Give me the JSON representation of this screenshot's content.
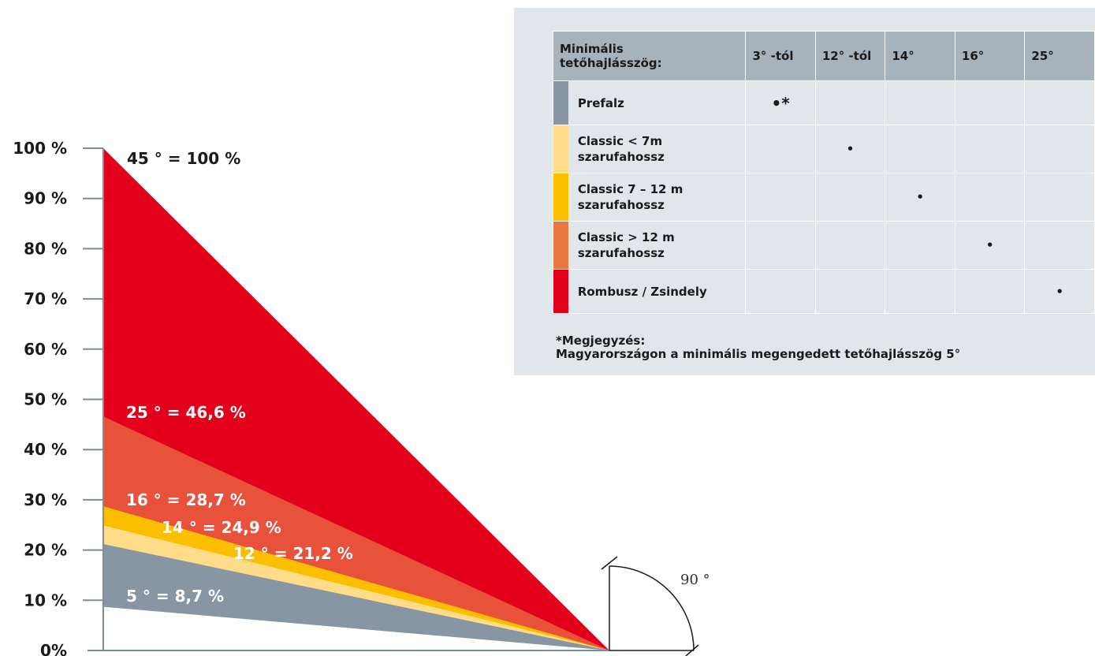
{
  "chart_data": {
    "type": "area",
    "y_ticks": [
      "0%",
      "10 %",
      "20 %",
      "30 %",
      "40 %",
      "50 %",
      "60 %",
      "70 %",
      "80 %",
      "90 %",
      "100 %"
    ],
    "ylim": [
      0,
      100
    ],
    "series": [
      {
        "name": "Rombusz / Zsindely",
        "angle_deg": 45,
        "value": 100,
        "label": "45 ° = 100 %",
        "color": "#e2001a"
      },
      {
        "name": "Classic > 12 m szarufahossz",
        "angle_deg": 25,
        "value": 46.6,
        "label": "25 ° = 46,6 %",
        "color": "#e8513a"
      },
      {
        "name": "Classic 7 – 12 m szarufahossz",
        "angle_deg": 16,
        "value": 28.7,
        "label": "16 ° = 28,7 %",
        "color": "#fcbf00"
      },
      {
        "name": "Classic < 7m szarufahossz",
        "angle_deg": 14,
        "value": 24.9,
        "label": "14 ° = 24,9 %",
        "color": "#fedc8a"
      },
      {
        "name": "Prefalz",
        "angle_deg": 12,
        "value": 21.2,
        "label": "12 ° = 21,2 %",
        "color": "#8796a2"
      },
      {
        "name": "",
        "angle_deg": 5,
        "value": 8.7,
        "label": "5 ° = 8,7 %",
        "color": "#ffffff"
      }
    ],
    "angle_annotation": "90 °"
  },
  "table": {
    "header_first": "Minimális tetőhajlásszög:",
    "columns": [
      "3° -tól",
      "12° -tól",
      "14°",
      "16°",
      "25°"
    ],
    "rows": [
      {
        "color": "#8796a2",
        "name_lines": [
          "Prefalz"
        ],
        "marks": [
          "•*",
          "",
          "",
          "",
          ""
        ]
      },
      {
        "color": "#fedc8a",
        "name_lines": [
          "Classic < 7m",
          "szarufahossz"
        ],
        "marks": [
          "",
          "•",
          "",
          "",
          ""
        ]
      },
      {
        "color": "#fcbf00",
        "name_lines": [
          "Classic 7 – 12 m",
          "szarufahossz"
        ],
        "marks": [
          "",
          "",
          "•",
          "",
          ""
        ]
      },
      {
        "color": "#e8783f",
        "name_lines": [
          "Classic > 12 m",
          "szarufahossz"
        ],
        "marks": [
          "",
          "",
          "",
          "•",
          ""
        ]
      },
      {
        "color": "#e2001a",
        "name_lines": [
          "Rombusz / Zsindely"
        ],
        "marks": [
          "",
          "",
          "",
          "",
          "•"
        ]
      }
    ]
  },
  "note": {
    "title": "*Megjegyzés:",
    "text": "Magyarországon a minimális megengedett tetőhajlásszög 5°"
  }
}
